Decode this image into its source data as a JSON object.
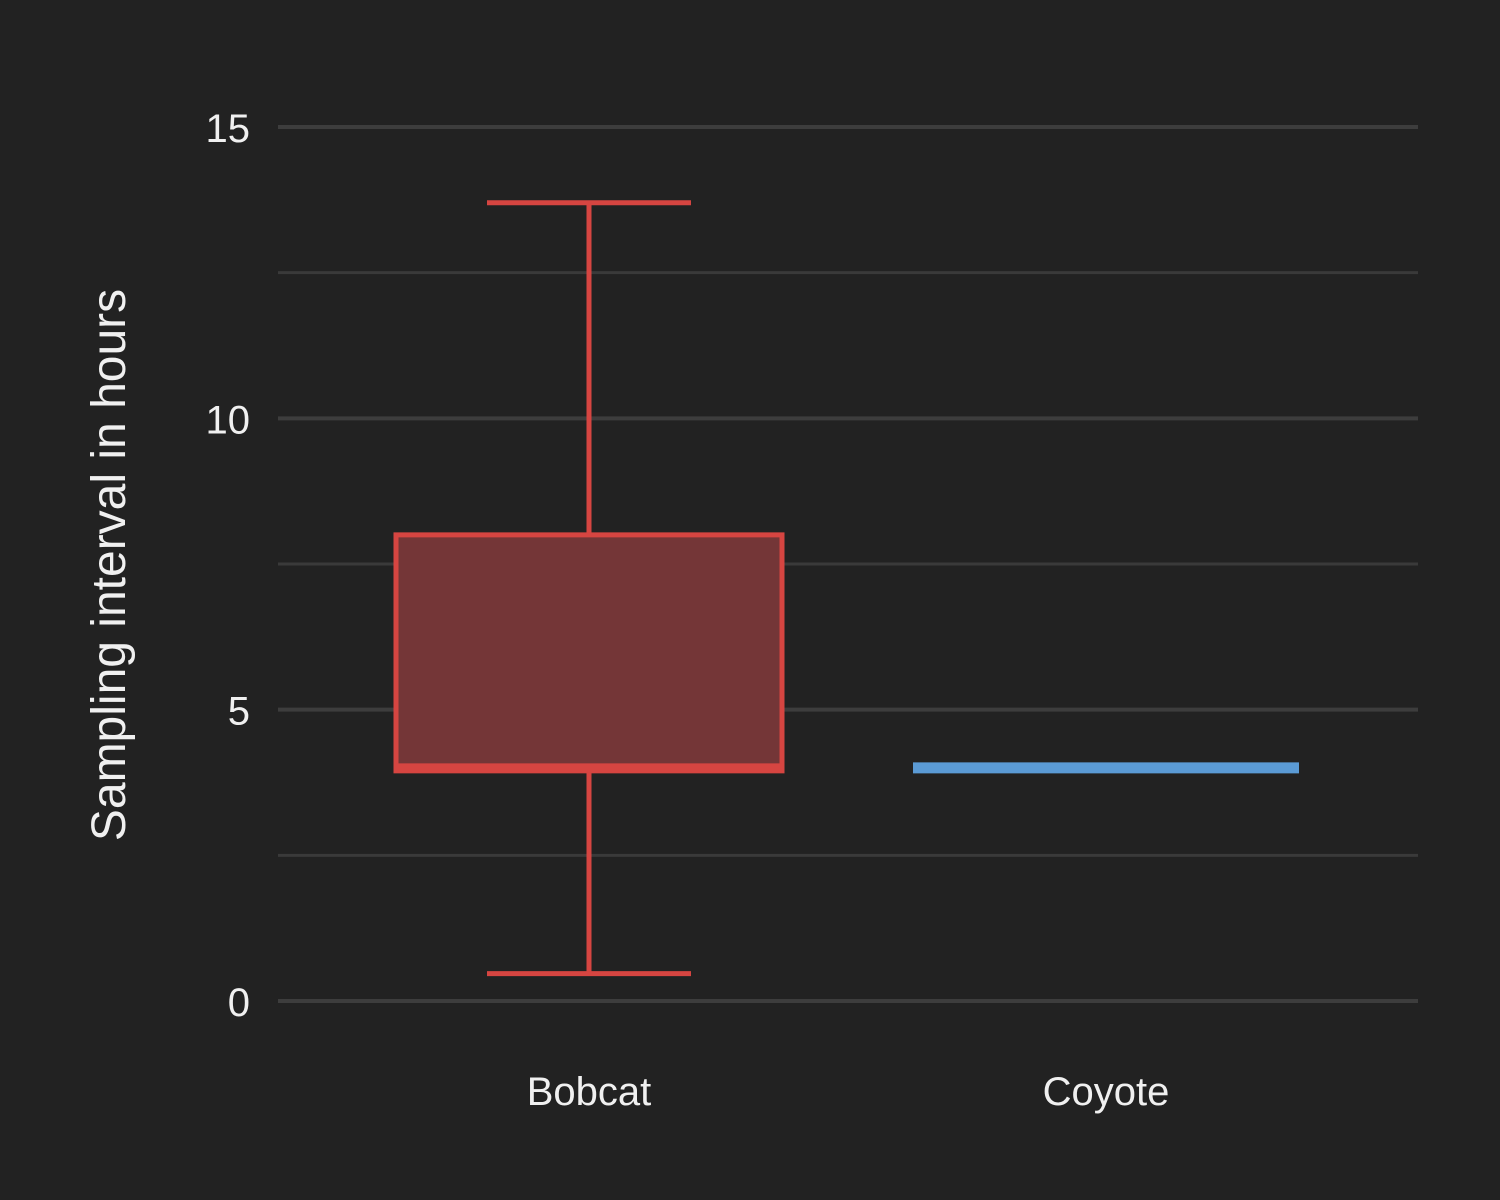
{
  "chart_data": {
    "type": "boxplot",
    "title": "",
    "xlabel": "",
    "ylabel": "Sampling interval in hours",
    "ylim": [
      -0.3,
      16.2
    ],
    "y_ticks": [
      0,
      5,
      10,
      15
    ],
    "y_tick_labels": [
      "0",
      "5",
      "10",
      "15"
    ],
    "y_minor_gridlines": [
      2.5,
      7.5,
      12.5
    ],
    "grid": true,
    "legend": "none",
    "background_color": "#222222",
    "gridline_color": "#3d3d3d",
    "categories": [
      "Bobcat",
      "Coyote"
    ],
    "boxes": [
      {
        "category": "Bobcat",
        "whisker_low": 0.47,
        "q1": 3.95,
        "median": 4.0,
        "q3": 8.0,
        "whisker_high": 13.7,
        "color": "#d64541",
        "fill": "#743637"
      },
      {
        "category": "Coyote",
        "whisker_low": 4.0,
        "q1": 4.0,
        "median": 4.0,
        "q3": 4.0,
        "whisker_high": 4.0,
        "color": "#5b9bd5",
        "fill": "#5b9bd5"
      }
    ]
  }
}
